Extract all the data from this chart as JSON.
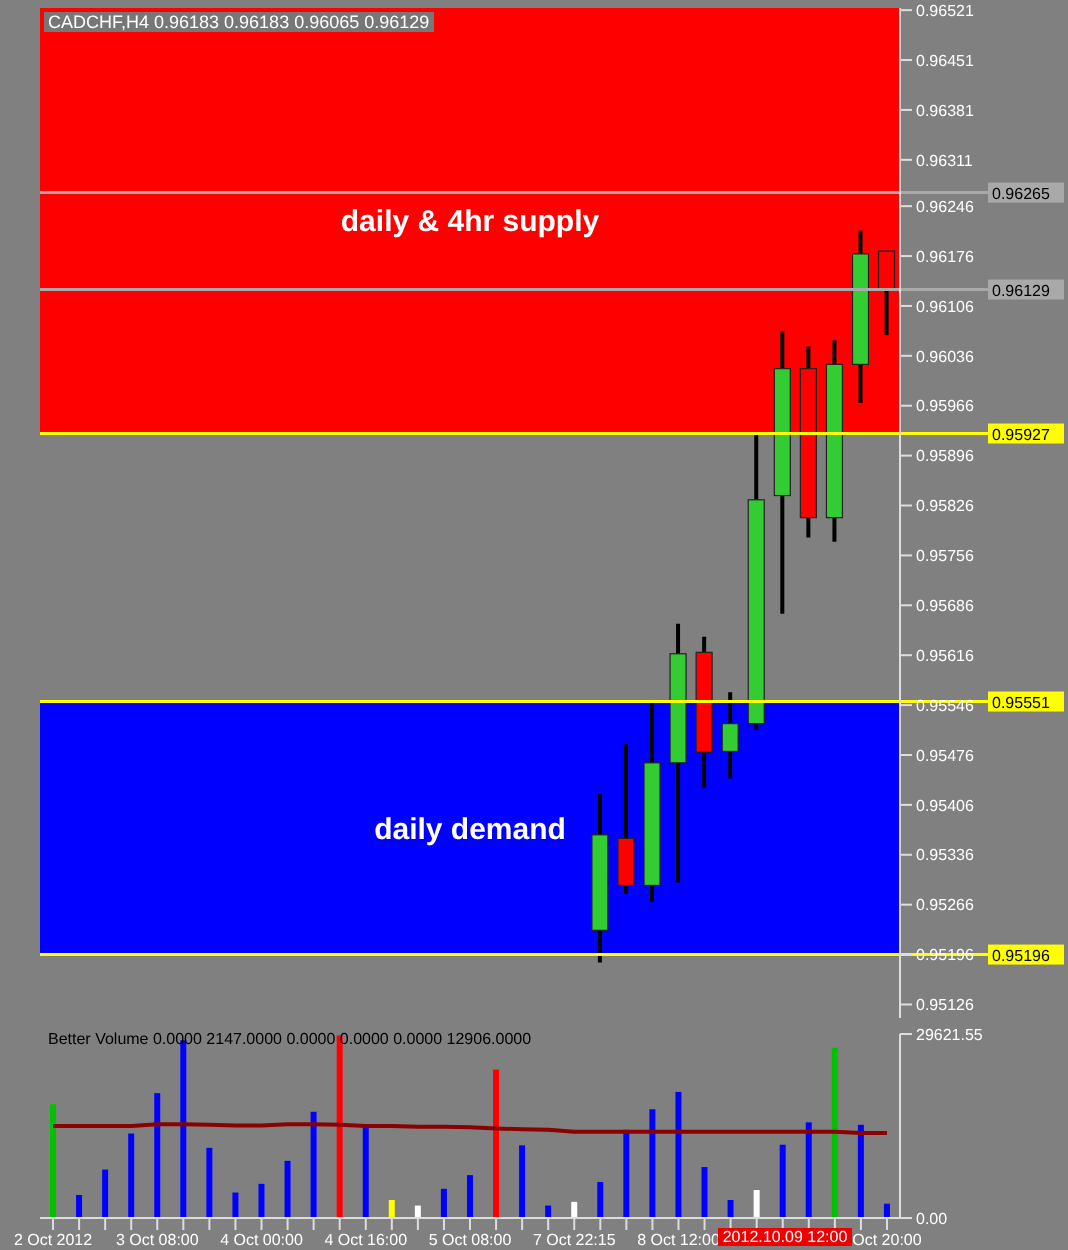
{
  "chart_data": [
    {
      "type": "candlestick",
      "title": "CADCHF,H4  0.96183 0.96183 0.96065 0.96129",
      "ohlc": [
        null,
        null,
        null,
        null,
        null,
        null,
        null,
        null,
        null,
        null,
        null,
        null,
        null,
        null,
        null,
        null,
        null,
        null,
        null,
        null,
        null,
        [
          0.9523,
          0.95422,
          0.95185,
          0.95364
        ],
        [
          0.95359,
          0.95491,
          0.95281,
          0.95293
        ],
        [
          0.95293,
          0.95553,
          0.9527,
          0.95465
        ],
        [
          0.95465,
          0.9566,
          0.95297,
          0.95618
        ],
        [
          0.9562,
          0.95642,
          0.9543,
          0.9548
        ],
        [
          0.95481,
          0.95564,
          0.95443,
          0.9552
        ],
        [
          0.9552,
          0.95929,
          0.95511,
          0.95834
        ],
        [
          0.9584,
          0.9607,
          0.95674,
          0.96018
        ],
        [
          0.96018,
          0.96049,
          0.95781,
          0.95809
        ],
        [
          0.95809,
          0.96058,
          0.95775,
          0.96024
        ],
        [
          0.96024,
          0.96212,
          0.9597,
          0.96179
        ],
        [
          0.96183,
          0.96183,
          0.96065,
          0.96129
        ]
      ],
      "ylim": [
        0.95107,
        0.96524
      ],
      "yticks": [
        0.96521,
        0.96451,
        0.96381,
        0.96311,
        0.96246,
        0.96176,
        0.96106,
        0.96036,
        0.95966,
        0.95896,
        0.95826,
        0.95756,
        0.95686,
        0.95616,
        0.95546,
        0.95476,
        0.95406,
        0.95336,
        0.95266,
        0.95196,
        0.95126
      ],
      "bands": [
        {
          "axis": "y",
          "from": 0.95927,
          "to": 0.96524,
          "label": "daily &  4hr supply",
          "color": "#ff0000"
        },
        {
          "axis": "y",
          "from": 0.95196,
          "to": 0.95551,
          "label": "daily demand",
          "color": "#0000ff"
        }
      ],
      "ref_lines": [
        {
          "axis": "y",
          "value": 0.96265,
          "label": "0.96265",
          "color": "#a9a9a9"
        },
        {
          "axis": "y",
          "value": 0.96129,
          "label": "0.96129",
          "color": "#a9a9a9"
        },
        {
          "axis": "y",
          "value": 0.95927,
          "label": "0.95927",
          "color": "#ffff00"
        },
        {
          "axis": "y",
          "value": 0.95551,
          "label": "0.95551",
          "color": "#ffff00"
        },
        {
          "axis": "y",
          "value": 0.95196,
          "label": "0.95196",
          "color": "#ffff00"
        }
      ],
      "tick_labels": "y",
      "grid": false,
      "legend": false
    },
    {
      "type": "bar",
      "title": "Better Volume 0.0000 2147.0000 0.0000 0.0000 0.0000 12906.0000",
      "categories": [
        "2 Oct 2012",
        null,
        null,
        null,
        "3 Oct 08:00",
        null,
        null,
        null,
        "4 Oct 00:00",
        null,
        null,
        null,
        "4 Oct 16:00",
        null,
        null,
        null,
        "5 Oct 08:00",
        null,
        null,
        null,
        "7 Oct 22:15",
        null,
        null,
        null,
        "8 Oct 12:00",
        null,
        null,
        null,
        null,
        null,
        null,
        null,
        "Oct 20:00"
      ],
      "series": [
        {
          "type": "bar",
          "colors": [
            "#00c000",
            "#0000ff",
            "#0000ff",
            "#0000ff",
            "#0000ff",
            "#0000ff",
            "#0000ff",
            "#0000ff",
            "#0000ff",
            "#0000ff",
            "#0000ff",
            "#ff0000",
            "#0000ff",
            "#ffff00",
            "#ffffff",
            "#0000ff",
            "#0000ff",
            "#ff0000",
            "#0000ff",
            "#0000ff",
            "#ffffff",
            "#0000ff",
            "#0000ff",
            "#0000ff",
            "#0000ff",
            "#0000ff",
            "#0000ff",
            "#ffffff",
            "#0000ff",
            "#0000ff",
            "#00c000",
            "#0000ff",
            "#0000ff"
          ],
          "values": [
            18300,
            3700,
            7800,
            13600,
            20100,
            28600,
            11300,
            4100,
            5500,
            9200,
            17100,
            29400,
            14800,
            2900,
            2000,
            4700,
            6900,
            23900,
            11700,
            2000,
            2600,
            5800,
            14200,
            17500,
            20300,
            8200,
            2900,
            4500,
            11800,
            15400,
            27400,
            15000,
            2300
          ]
        },
        {
          "type": "line",
          "color": "#8b0000",
          "values": [
            14800,
            14800,
            14800,
            14800,
            15100,
            15100,
            15000,
            14900,
            14900,
            15100,
            15100,
            15000,
            14800,
            14800,
            14700,
            14700,
            14600,
            14400,
            14300,
            14200,
            13900,
            13900,
            13900,
            13900,
            13900,
            13900,
            13900,
            13900,
            13900,
            13900,
            13900,
            13700,
            13700
          ]
        }
      ],
      "ylim": [
        0,
        29621.55
      ],
      "yticks": [
        {
          "value": 0,
          "label": "0.00"
        },
        29621.55
      ],
      "annotations": [
        "2012.10.09 12:00"
      ],
      "grid": false,
      "legend": false
    }
  ]
}
